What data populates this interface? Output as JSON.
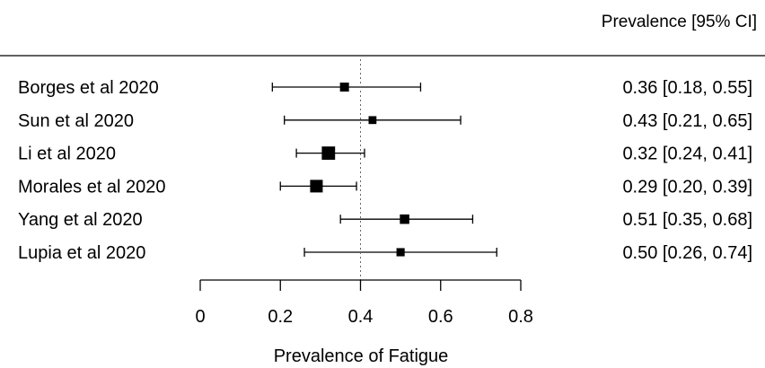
{
  "chart_data": {
    "type": "forest",
    "column_header": "Prevalence [95% CI]",
    "xlabel": "Prevalence of Fatigue",
    "xlim": [
      0,
      0.8
    ],
    "xticks": [
      "0",
      "0.2",
      "0.4",
      "0.6",
      "0.8"
    ],
    "xtick_values": [
      0,
      0.2,
      0.4,
      0.6,
      0.8
    ],
    "reference_line": 0.4,
    "studies": [
      {
        "label": "Borges et al 2020",
        "estimate": 0.36,
        "lower": 0.18,
        "upper": 0.55,
        "weight": 1.0,
        "text": "0.36 [0.18, 0.55]"
      },
      {
        "label": "Sun et al 2020",
        "estimate": 0.43,
        "lower": 0.21,
        "upper": 0.65,
        "weight": 0.6,
        "text": "0.43 [0.21, 0.65]"
      },
      {
        "label": "Li et al 2020",
        "estimate": 0.32,
        "lower": 0.24,
        "upper": 0.41,
        "weight": 3.5,
        "text": "0.32 [0.24, 0.41]"
      },
      {
        "label": "Morales et al 2020",
        "estimate": 0.29,
        "lower": 0.2,
        "upper": 0.39,
        "weight": 3.0,
        "text": "0.29 [0.20, 0.39]"
      },
      {
        "label": "Yang et al 2020",
        "estimate": 0.51,
        "lower": 0.35,
        "upper": 0.68,
        "weight": 1.2,
        "text": "0.51 [0.35, 0.68]"
      },
      {
        "label": "Lupia et al 2020",
        "estimate": 0.5,
        "lower": 0.26,
        "upper": 0.74,
        "weight": 0.7,
        "text": "0.50 [0.26, 0.74]"
      }
    ]
  }
}
